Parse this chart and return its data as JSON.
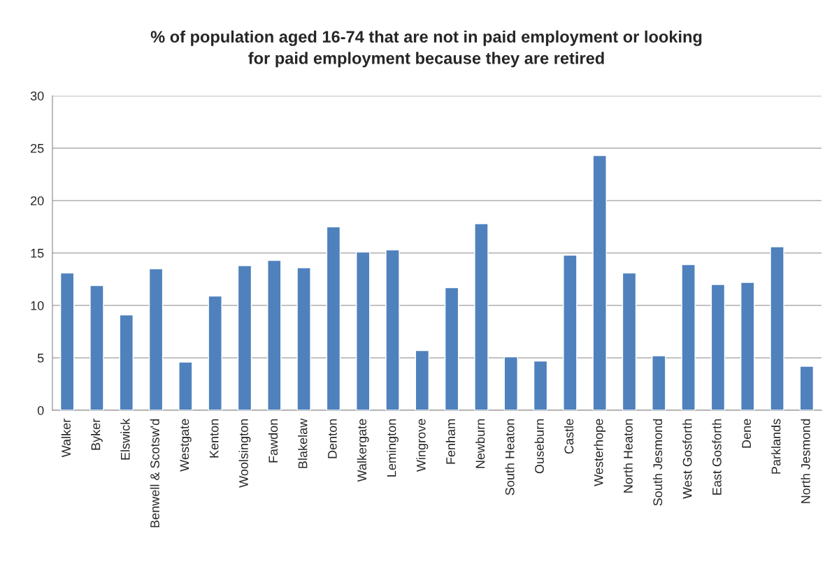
{
  "chart_data": {
    "type": "bar",
    "title": "% of population aged 16-74 that are not in paid employment or looking\nfor paid employment because they are retired",
    "categories": [
      "Walker",
      "Byker",
      "Elswick",
      "Benwell & Scotsw'd",
      "Westgate",
      "Kenton",
      "Woolsington",
      "Fawdon",
      "Blakelaw",
      "Denton",
      "Walkergate",
      "Lemington",
      "Wingrove",
      "Fenham",
      "Newburn",
      "South Heaton",
      "Ouseburn",
      "Castle",
      "Westerhope",
      "North Heaton",
      "South Jesmond",
      "West Gosforth",
      "East Gosforth",
      "Dene",
      "Parklands",
      "North Jesmond"
    ],
    "values": [
      13.1,
      11.9,
      9.1,
      13.5,
      4.6,
      10.9,
      13.8,
      14.3,
      13.6,
      17.5,
      15.1,
      15.3,
      5.7,
      11.7,
      17.8,
      5.1,
      4.7,
      14.8,
      24.3,
      13.1,
      5.2,
      13.9,
      12.0,
      12.2,
      15.6,
      4.2
    ],
    "color": "#4f81bd",
    "ylim": [
      0,
      30
    ],
    "yticks": [
      0,
      5,
      10,
      15,
      20,
      25,
      30
    ],
    "grid": "y"
  }
}
